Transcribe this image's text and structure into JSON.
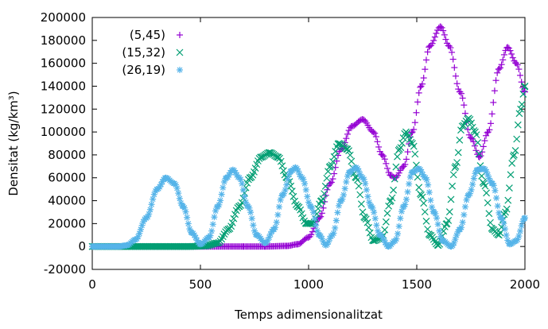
{
  "chart_data": {
    "type": "scatter",
    "xlabel": "Temps adimensionalitzat",
    "ylabel": "Densitat (kg/km³)",
    "xlim": [
      0,
      2000
    ],
    "ylim": [
      -20000,
      200000
    ],
    "xticks": [
      0,
      500,
      1000,
      1500,
      2000
    ],
    "xtick_labels": [
      "0",
      "500",
      "1000",
      "1500",
      "2000"
    ],
    "yticks": [
      -20000,
      0,
      20000,
      40000,
      60000,
      80000,
      100000,
      120000,
      140000,
      160000,
      180000,
      200000
    ],
    "ytick_labels": [
      "-20000",
      "0",
      "20000",
      "40000",
      "60000",
      "80000",
      "100000",
      "120000",
      "140000",
      "160000",
      "180000",
      "200000"
    ],
    "grid": false,
    "legend_position": "top-left",
    "series": [
      {
        "name": "(5,45)",
        "color": "#9400d3",
        "marker": "plus",
        "points": [
          [
            0,
            0
          ],
          [
            700,
            0
          ],
          [
            800,
            0
          ],
          [
            900,
            500
          ],
          [
            950,
            2000
          ],
          [
            1000,
            8000
          ],
          [
            1050,
            25000
          ],
          [
            1100,
            55000
          ],
          [
            1150,
            85000
          ],
          [
            1200,
            105000
          ],
          [
            1250,
            111000
          ],
          [
            1300,
            100000
          ],
          [
            1340,
            80000
          ],
          [
            1380,
            62000
          ],
          [
            1400,
            60000
          ],
          [
            1440,
            70000
          ],
          [
            1480,
            100000
          ],
          [
            1520,
            140000
          ],
          [
            1560,
            175000
          ],
          [
            1610,
            192000
          ],
          [
            1650,
            175000
          ],
          [
            1700,
            135000
          ],
          [
            1750,
            95000
          ],
          [
            1790,
            78000
          ],
          [
            1830,
            100000
          ],
          [
            1880,
            155000
          ],
          [
            1920,
            174000
          ],
          [
            1960,
            160000
          ],
          [
            2000,
            135000
          ]
        ]
      },
      {
        "name": "(15,32)",
        "color": "#009e73",
        "marker": "cross",
        "points": [
          [
            0,
            0
          ],
          [
            450,
            0
          ],
          [
            520,
            500
          ],
          [
            580,
            3000
          ],
          [
            630,
            15000
          ],
          [
            680,
            35000
          ],
          [
            730,
            60000
          ],
          [
            780,
            78000
          ],
          [
            820,
            82000
          ],
          [
            860,
            78000
          ],
          [
            900,
            60000
          ],
          [
            950,
            35000
          ],
          [
            990,
            20000
          ],
          [
            1020,
            20000
          ],
          [
            1060,
            40000
          ],
          [
            1100,
            70000
          ],
          [
            1140,
            90000
          ],
          [
            1180,
            85000
          ],
          [
            1220,
            60000
          ],
          [
            1260,
            25000
          ],
          [
            1300,
            5000
          ],
          [
            1340,
            8000
          ],
          [
            1380,
            40000
          ],
          [
            1420,
            85000
          ],
          [
            1450,
            100000
          ],
          [
            1480,
            90000
          ],
          [
            1520,
            45000
          ],
          [
            1560,
            10000
          ],
          [
            1600,
            1000
          ],
          [
            1640,
            20000
          ],
          [
            1680,
            70000
          ],
          [
            1710,
            105000
          ],
          [
            1740,
            112000
          ],
          [
            1770,
            100000
          ],
          [
            1810,
            55000
          ],
          [
            1850,
            15000
          ],
          [
            1880,
            10000
          ],
          [
            1910,
            30000
          ],
          [
            1950,
            80000
          ],
          [
            1980,
            120000
          ],
          [
            2000,
            140000
          ]
        ]
      },
      {
        "name": "(26,19)",
        "color": "#56b4e9",
        "marker": "star",
        "points": [
          [
            0,
            0
          ],
          [
            120,
            0
          ],
          [
            160,
            1000
          ],
          [
            200,
            6000
          ],
          [
            250,
            25000
          ],
          [
            300,
            50000
          ],
          [
            340,
            60000
          ],
          [
            380,
            55000
          ],
          [
            420,
            35000
          ],
          [
            460,
            12000
          ],
          [
            500,
            2000
          ],
          [
            540,
            8000
          ],
          [
            580,
            35000
          ],
          [
            620,
            60000
          ],
          [
            650,
            67000
          ],
          [
            680,
            60000
          ],
          [
            720,
            35000
          ],
          [
            760,
            10000
          ],
          [
            800,
            3000
          ],
          [
            840,
            15000
          ],
          [
            880,
            45000
          ],
          [
            920,
            66000
          ],
          [
            940,
            69000
          ],
          [
            970,
            60000
          ],
          [
            1010,
            35000
          ],
          [
            1050,
            10000
          ],
          [
            1080,
            1000
          ],
          [
            1110,
            10000
          ],
          [
            1150,
            40000
          ],
          [
            1190,
            65000
          ],
          [
            1220,
            69000
          ],
          [
            1250,
            60000
          ],
          [
            1290,
            35000
          ],
          [
            1330,
            10000
          ],
          [
            1370,
            0
          ],
          [
            1400,
            5000
          ],
          [
            1440,
            35000
          ],
          [
            1480,
            65000
          ],
          [
            1510,
            68000
          ],
          [
            1540,
            60000
          ],
          [
            1580,
            30000
          ],
          [
            1620,
            5000
          ],
          [
            1660,
            0
          ],
          [
            1700,
            15000
          ],
          [
            1740,
            45000
          ],
          [
            1780,
            67000
          ],
          [
            1810,
            68000
          ],
          [
            1850,
            55000
          ],
          [
            1890,
            25000
          ],
          [
            1930,
            2000
          ],
          [
            1960,
            5000
          ],
          [
            2000,
            25000
          ]
        ]
      }
    ]
  }
}
